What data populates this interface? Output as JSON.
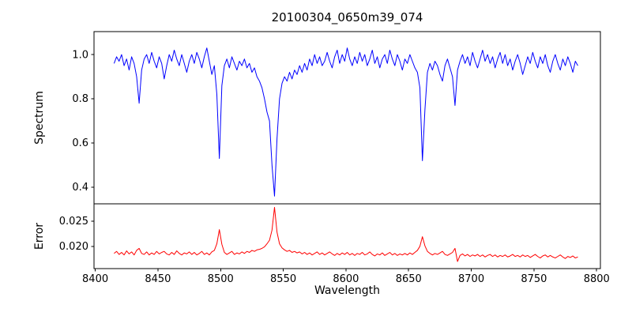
{
  "figure": {
    "title": "20100304_0650m39_074",
    "xlabel": "Wavelength",
    "background": "#ffffff",
    "spine_color": "#000000"
  },
  "xticks": [
    8400,
    8450,
    8500,
    8550,
    8600,
    8650,
    8700,
    8750,
    8800
  ],
  "xtick_labels": [
    "8400",
    "8450",
    "8500",
    "8550",
    "8600",
    "8650",
    "8700",
    "8750",
    "8800"
  ],
  "chart_data": [
    {
      "type": "line",
      "name": "spectrum",
      "ylabel": "Spectrum",
      "color": "#0000ff",
      "xlim": [
        8399,
        8803
      ],
      "ylim": [
        0.325,
        1.104
      ],
      "yticks": [
        1.0,
        0.8,
        0.6,
        0.4
      ],
      "ytick_labels": [
        "1.0",
        "0.8",
        "0.6",
        "0.4"
      ],
      "absorption_lines": [
        8498,
        8542,
        8662,
        8688
      ],
      "x_start": 8415,
      "x_step": 2,
      "values": [
        0.96,
        0.99,
        0.97,
        1.0,
        0.95,
        0.98,
        0.93,
        0.99,
        0.96,
        0.9,
        0.78,
        0.93,
        0.98,
        1.0,
        0.96,
        1.01,
        0.97,
        0.94,
        0.99,
        0.96,
        0.89,
        0.95,
        1.0,
        0.97,
        1.02,
        0.98,
        0.95,
        1.0,
        0.96,
        0.92,
        0.97,
        1.0,
        0.96,
        1.01,
        0.98,
        0.94,
        0.99,
        1.03,
        0.97,
        0.91,
        0.95,
        0.82,
        0.53,
        0.86,
        0.95,
        0.98,
        0.94,
        0.99,
        0.96,
        0.93,
        0.97,
        0.95,
        0.98,
        0.94,
        0.96,
        0.92,
        0.94,
        0.9,
        0.88,
        0.85,
        0.8,
        0.74,
        0.7,
        0.5,
        0.36,
        0.62,
        0.8,
        0.87,
        0.9,
        0.88,
        0.92,
        0.89,
        0.93,
        0.91,
        0.95,
        0.92,
        0.96,
        0.93,
        0.98,
        0.95,
        1.0,
        0.96,
        0.99,
        0.95,
        0.97,
        1.01,
        0.97,
        0.94,
        0.99,
        1.02,
        0.96,
        1.0,
        0.97,
        1.03,
        0.98,
        0.95,
        0.99,
        0.96,
        1.01,
        0.97,
        1.0,
        0.95,
        0.98,
        1.02,
        0.96,
        0.99,
        0.94,
        0.98,
        1.0,
        0.96,
        1.02,
        0.98,
        0.95,
        1.0,
        0.97,
        0.93,
        0.98,
        0.96,
        1.0,
        0.97,
        0.94,
        0.92,
        0.85,
        0.52,
        0.75,
        0.92,
        0.96,
        0.93,
        0.97,
        0.95,
        0.91,
        0.88,
        0.95,
        0.98,
        0.94,
        0.9,
        0.77,
        0.93,
        0.97,
        1.0,
        0.96,
        0.99,
        0.95,
        1.01,
        0.97,
        0.94,
        0.98,
        1.02,
        0.97,
        1.0,
        0.96,
        0.99,
        0.94,
        0.98,
        1.01,
        0.96,
        1.0,
        0.95,
        0.98,
        0.93,
        0.97,
        1.0,
        0.96,
        0.91,
        0.95,
        0.99,
        0.96,
        1.01,
        0.97,
        0.94,
        0.99,
        0.96,
        1.0,
        0.95,
        0.92,
        0.97,
        1.0,
        0.96,
        0.93,
        0.98,
        0.95,
        0.99,
        0.96,
        0.92,
        0.97,
        0.95
      ]
    },
    {
      "type": "line",
      "name": "error",
      "ylabel": "Error",
      "color": "#ff0000",
      "xlim": [
        8399,
        8803
      ],
      "ylim": [
        0.0156,
        0.0284
      ],
      "yticks": [
        0.025,
        0.02
      ],
      "ytick_labels": [
        "0.025",
        "0.020"
      ],
      "x_start": 8415,
      "x_step": 2,
      "values": [
        0.0186,
        0.019,
        0.0184,
        0.0188,
        0.0183,
        0.0191,
        0.0185,
        0.0189,
        0.0183,
        0.0192,
        0.0196,
        0.0186,
        0.0184,
        0.0189,
        0.0183,
        0.0187,
        0.0184,
        0.019,
        0.0185,
        0.0188,
        0.019,
        0.0185,
        0.0183,
        0.0188,
        0.0184,
        0.0191,
        0.0186,
        0.0183,
        0.0187,
        0.0185,
        0.0189,
        0.0184,
        0.0188,
        0.0183,
        0.0186,
        0.019,
        0.0184,
        0.0187,
        0.0183,
        0.0189,
        0.0192,
        0.0205,
        0.0233,
        0.0204,
        0.0188,
        0.0184,
        0.0187,
        0.019,
        0.0184,
        0.0187,
        0.0185,
        0.0189,
        0.0186,
        0.019,
        0.0188,
        0.0192,
        0.019,
        0.0193,
        0.0194,
        0.0196,
        0.0199,
        0.0205,
        0.0212,
        0.0232,
        0.0277,
        0.0228,
        0.0205,
        0.0197,
        0.0193,
        0.019,
        0.0192,
        0.0188,
        0.019,
        0.0187,
        0.0189,
        0.0185,
        0.0188,
        0.0184,
        0.0187,
        0.0183,
        0.0186,
        0.0189,
        0.0184,
        0.0187,
        0.0183,
        0.0186,
        0.0189,
        0.0185,
        0.0182,
        0.0186,
        0.0183,
        0.0187,
        0.0184,
        0.0188,
        0.0183,
        0.0186,
        0.0182,
        0.0186,
        0.0184,
        0.0188,
        0.0183,
        0.0185,
        0.0189,
        0.0184,
        0.0181,
        0.0185,
        0.0183,
        0.0187,
        0.0182,
        0.0185,
        0.0188,
        0.0183,
        0.0186,
        0.0182,
        0.0185,
        0.0183,
        0.0186,
        0.0183,
        0.0187,
        0.0184,
        0.0188,
        0.0192,
        0.02,
        0.0219,
        0.0201,
        0.019,
        0.0186,
        0.0183,
        0.0186,
        0.0184,
        0.0187,
        0.019,
        0.0184,
        0.0182,
        0.0185,
        0.0188,
        0.0196,
        0.017,
        0.0182,
        0.0185,
        0.0181,
        0.0184,
        0.018,
        0.0183,
        0.0181,
        0.0184,
        0.018,
        0.0183,
        0.0179,
        0.0182,
        0.0184,
        0.018,
        0.0183,
        0.0179,
        0.0182,
        0.018,
        0.0183,
        0.0179,
        0.0181,
        0.0184,
        0.018,
        0.0182,
        0.0179,
        0.0183,
        0.018,
        0.0182,
        0.0178,
        0.0181,
        0.0184,
        0.018,
        0.0177,
        0.0181,
        0.0183,
        0.0179,
        0.0182,
        0.0179,
        0.0177,
        0.018,
        0.0183,
        0.0179,
        0.0176,
        0.018,
        0.0178,
        0.0181,
        0.0177,
        0.0179
      ]
    }
  ]
}
